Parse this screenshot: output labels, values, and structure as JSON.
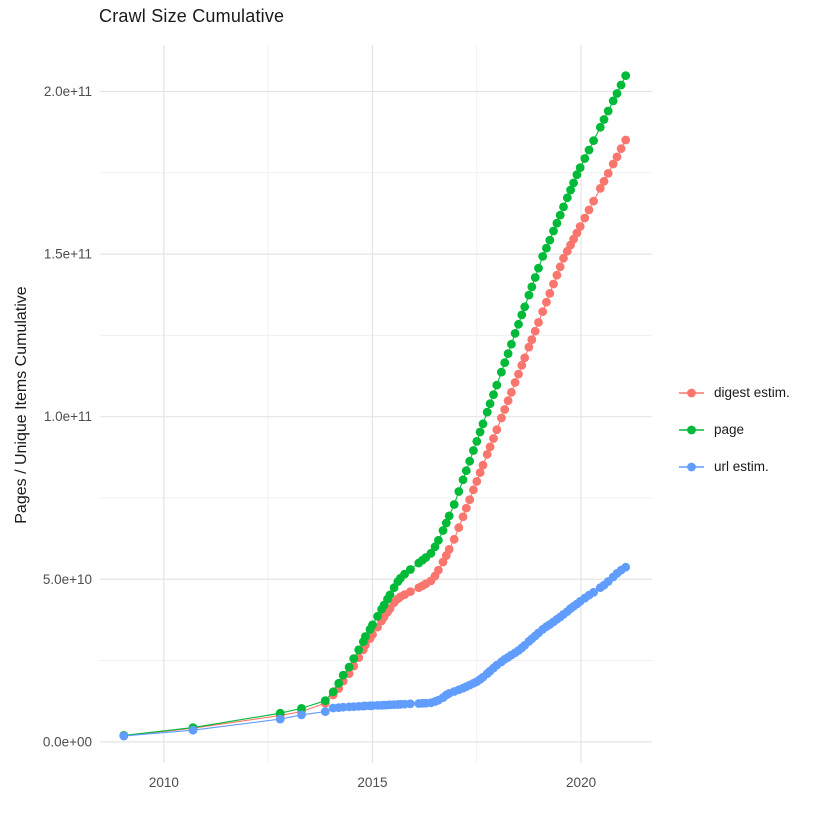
{
  "chart_data": {
    "type": "scatter",
    "title": "Crawl Size Cumulative",
    "xlabel": "",
    "ylabel": "Pages / Unique Items Cumulative",
    "value_units": "billions (1e9) of pages / unique items",
    "grid": true,
    "legend_position": "right",
    "xlim": [
      2008.47,
      2021.7
    ],
    "ylim_billions": [
      -6.5,
      214.3
    ],
    "x_ticks": [
      {
        "value": 2010,
        "label": "2010"
      },
      {
        "value": 2015,
        "label": "2015"
      },
      {
        "value": 2020,
        "label": "2020"
      }
    ],
    "x_minor": [
      2012.5,
      2017.5
    ],
    "y_ticks": [
      {
        "value_billions": 0,
        "label": "0.0e+00"
      },
      {
        "value_billions": 50,
        "label": "5.0e+10"
      },
      {
        "value_billions": 100,
        "label": "1.0e+11"
      },
      {
        "value_billions": 150,
        "label": "1.5e+11"
      },
      {
        "value_billions": 200,
        "label": "2.0e+11"
      }
    ],
    "y_minor_billions": [
      25,
      75,
      125,
      175
    ],
    "point_radius": 4.4,
    "series": [
      {
        "name": "digest estim.",
        "color": "#F8766D",
        "points": [
          [
            2009.04,
            1.85
          ],
          [
            2010.7,
            4.2
          ],
          [
            2012.79,
            8.1
          ],
          [
            2013.3,
            9.3
          ],
          [
            2013.87,
            11.9
          ],
          [
            2014.06,
            14.4
          ],
          [
            2014.19,
            16.4
          ],
          [
            2014.3,
            18.7
          ],
          [
            2014.44,
            21.0
          ],
          [
            2014.55,
            23.3
          ],
          [
            2014.67,
            25.9
          ],
          [
            2014.78,
            28.3
          ],
          [
            2014.83,
            29.8
          ],
          [
            2014.94,
            31.8
          ],
          [
            2015.0,
            33.0
          ],
          [
            2015.12,
            35.3
          ],
          [
            2015.22,
            37.2
          ],
          [
            2015.28,
            38.4
          ],
          [
            2015.36,
            39.9
          ],
          [
            2015.42,
            41.0
          ],
          [
            2015.52,
            42.8
          ],
          [
            2015.61,
            44.0
          ],
          [
            2015.67,
            44.6
          ],
          [
            2015.77,
            45.3
          ],
          [
            2015.91,
            46.2
          ],
          [
            2016.11,
            47.4
          ],
          [
            2016.2,
            48.0
          ],
          [
            2016.28,
            48.6
          ],
          [
            2016.4,
            49.5
          ],
          [
            2016.5,
            51.0
          ],
          [
            2016.58,
            52.8
          ],
          [
            2016.69,
            55.3
          ],
          [
            2016.77,
            57.3
          ],
          [
            2016.84,
            59.2
          ],
          [
            2016.96,
            62.3
          ],
          [
            2017.07,
            65.9
          ],
          [
            2017.17,
            69.2
          ],
          [
            2017.25,
            71.9
          ],
          [
            2017.33,
            74.5
          ],
          [
            2017.42,
            77.5
          ],
          [
            2017.5,
            80.1
          ],
          [
            2017.58,
            82.8
          ],
          [
            2017.65,
            85.1
          ],
          [
            2017.75,
            88.4
          ],
          [
            2017.82,
            90.7
          ],
          [
            2017.9,
            93.3
          ],
          [
            2017.98,
            96.0
          ],
          [
            2018.09,
            99.6
          ],
          [
            2018.17,
            102.2
          ],
          [
            2018.25,
            104.9
          ],
          [
            2018.33,
            107.5
          ],
          [
            2018.42,
            110.5
          ],
          [
            2018.5,
            113.1
          ],
          [
            2018.58,
            115.8
          ],
          [
            2018.65,
            118.1
          ],
          [
            2018.75,
            121.4
          ],
          [
            2018.82,
            123.7
          ],
          [
            2018.9,
            126.3
          ],
          [
            2018.98,
            129.0
          ],
          [
            2019.08,
            132.3
          ],
          [
            2019.17,
            135.2
          ],
          [
            2019.25,
            137.9
          ],
          [
            2019.34,
            140.8
          ],
          [
            2019.42,
            143.5
          ],
          [
            2019.5,
            146.1
          ],
          [
            2019.58,
            148.7
          ],
          [
            2019.67,
            150.9
          ],
          [
            2019.75,
            152.8
          ],
          [
            2019.82,
            154.6
          ],
          [
            2019.9,
            156.5
          ],
          [
            2019.98,
            158.5
          ],
          [
            2020.09,
            161.1
          ],
          [
            2020.19,
            163.6
          ],
          [
            2020.3,
            166.3
          ],
          [
            2020.46,
            170.2
          ],
          [
            2020.55,
            172.4
          ],
          [
            2020.65,
            174.8
          ],
          [
            2020.77,
            177.7
          ],
          [
            2020.86,
            179.9
          ],
          [
            2020.96,
            182.4
          ],
          [
            2021.07,
            185.1
          ]
        ]
      },
      {
        "name": "page",
        "color": "#00BA38",
        "points": [
          [
            2009.04,
            2.0
          ],
          [
            2010.7,
            4.4
          ],
          [
            2012.79,
            8.8
          ],
          [
            2013.3,
            10.3
          ],
          [
            2013.87,
            12.7
          ],
          [
            2014.06,
            15.4
          ],
          [
            2014.19,
            18.0
          ],
          [
            2014.3,
            20.5
          ],
          [
            2014.44,
            23.0
          ],
          [
            2014.55,
            25.6
          ],
          [
            2014.67,
            28.3
          ],
          [
            2014.78,
            30.8
          ],
          [
            2014.83,
            32.4
          ],
          [
            2014.94,
            34.6
          ],
          [
            2015.0,
            36.0
          ],
          [
            2015.12,
            38.6
          ],
          [
            2015.22,
            40.8
          ],
          [
            2015.28,
            42.1
          ],
          [
            2015.36,
            43.9
          ],
          [
            2015.42,
            45.2
          ],
          [
            2015.52,
            47.4
          ],
          [
            2015.61,
            49.3
          ],
          [
            2015.67,
            50.3
          ],
          [
            2015.77,
            51.6
          ],
          [
            2015.91,
            53.0
          ],
          [
            2016.11,
            55.0
          ],
          [
            2016.2,
            55.9
          ],
          [
            2016.28,
            56.7
          ],
          [
            2016.4,
            58.0
          ],
          [
            2016.5,
            60.0
          ],
          [
            2016.58,
            62.0
          ],
          [
            2016.69,
            65.0
          ],
          [
            2016.77,
            67.3
          ],
          [
            2016.84,
            69.5
          ],
          [
            2016.96,
            73.0
          ],
          [
            2017.07,
            77.0
          ],
          [
            2017.17,
            80.6
          ],
          [
            2017.25,
            83.4
          ],
          [
            2017.33,
            86.3
          ],
          [
            2017.42,
            89.6
          ],
          [
            2017.5,
            92.4
          ],
          [
            2017.58,
            95.3
          ],
          [
            2017.65,
            97.8
          ],
          [
            2017.75,
            101.4
          ],
          [
            2017.82,
            104.0
          ],
          [
            2017.9,
            106.8
          ],
          [
            2017.98,
            109.7
          ],
          [
            2018.09,
            113.7
          ],
          [
            2018.17,
            116.6
          ],
          [
            2018.25,
            119.4
          ],
          [
            2018.33,
            122.3
          ],
          [
            2018.42,
            125.6
          ],
          [
            2018.5,
            128.4
          ],
          [
            2018.58,
            131.3
          ],
          [
            2018.65,
            133.8
          ],
          [
            2018.75,
            137.4
          ],
          [
            2018.82,
            139.9
          ],
          [
            2018.9,
            142.8
          ],
          [
            2018.98,
            145.7
          ],
          [
            2019.08,
            149.3
          ],
          [
            2019.17,
            151.8
          ],
          [
            2019.25,
            154.3
          ],
          [
            2019.34,
            157.1
          ],
          [
            2019.42,
            159.5
          ],
          [
            2019.5,
            162.0
          ],
          [
            2019.58,
            164.5
          ],
          [
            2019.67,
            167.3
          ],
          [
            2019.75,
            169.7
          ],
          [
            2019.82,
            171.9
          ],
          [
            2019.9,
            174.4
          ],
          [
            2019.98,
            176.6
          ],
          [
            2020.09,
            179.4
          ],
          [
            2020.19,
            182.0
          ],
          [
            2020.3,
            184.9
          ],
          [
            2020.46,
            189.0
          ],
          [
            2020.55,
            191.4
          ],
          [
            2020.65,
            194.0
          ],
          [
            2020.77,
            197.1
          ],
          [
            2020.86,
            199.4
          ],
          [
            2020.96,
            202.0
          ],
          [
            2021.07,
            204.9
          ]
        ]
      },
      {
        "name": "url estim.",
        "color": "#619CFF",
        "points": [
          [
            2009.04,
            1.8
          ],
          [
            2010.7,
            3.6
          ],
          [
            2012.79,
            7.0
          ],
          [
            2013.3,
            8.3
          ],
          [
            2013.87,
            9.3
          ],
          [
            2014.06,
            10.4
          ],
          [
            2014.19,
            10.55
          ],
          [
            2014.3,
            10.65
          ],
          [
            2014.44,
            10.75
          ],
          [
            2014.55,
            10.85
          ],
          [
            2014.67,
            10.9
          ],
          [
            2014.78,
            11.0
          ],
          [
            2014.83,
            11.05
          ],
          [
            2014.94,
            11.1
          ],
          [
            2015.0,
            11.15
          ],
          [
            2015.12,
            11.2
          ],
          [
            2015.22,
            11.25
          ],
          [
            2015.28,
            11.3
          ],
          [
            2015.36,
            11.35
          ],
          [
            2015.42,
            11.4
          ],
          [
            2015.52,
            11.45
          ],
          [
            2015.61,
            11.5
          ],
          [
            2015.67,
            11.55
          ],
          [
            2015.77,
            11.6
          ],
          [
            2015.91,
            11.7
          ],
          [
            2016.11,
            11.8
          ],
          [
            2016.2,
            11.85
          ],
          [
            2016.28,
            11.9
          ],
          [
            2016.4,
            12.0
          ],
          [
            2016.5,
            12.4
          ],
          [
            2016.58,
            12.8
          ],
          [
            2016.69,
            13.6
          ],
          [
            2016.77,
            14.4
          ],
          [
            2016.84,
            14.9
          ],
          [
            2016.96,
            15.5
          ],
          [
            2017.07,
            16.0
          ],
          [
            2017.17,
            16.5
          ],
          [
            2017.25,
            17.0
          ],
          [
            2017.33,
            17.5
          ],
          [
            2017.42,
            18.0
          ],
          [
            2017.5,
            18.5
          ],
          [
            2017.58,
            19.2
          ],
          [
            2017.65,
            19.9
          ],
          [
            2017.75,
            21.0
          ],
          [
            2017.82,
            21.8
          ],
          [
            2017.9,
            22.7
          ],
          [
            2017.98,
            23.6
          ],
          [
            2018.09,
            24.6
          ],
          [
            2018.17,
            25.4
          ],
          [
            2018.25,
            26.0
          ],
          [
            2018.33,
            26.7
          ],
          [
            2018.42,
            27.4
          ],
          [
            2018.5,
            28.1
          ],
          [
            2018.58,
            28.9
          ],
          [
            2018.65,
            29.7
          ],
          [
            2018.75,
            30.9
          ],
          [
            2018.82,
            31.7
          ],
          [
            2018.9,
            32.6
          ],
          [
            2018.98,
            33.5
          ],
          [
            2019.08,
            34.6
          ],
          [
            2019.17,
            35.4
          ],
          [
            2019.25,
            36.1
          ],
          [
            2019.34,
            36.9
          ],
          [
            2019.42,
            37.7
          ],
          [
            2019.5,
            38.4
          ],
          [
            2019.58,
            39.2
          ],
          [
            2019.67,
            40.1
          ],
          [
            2019.75,
            41.0
          ],
          [
            2019.82,
            41.7
          ],
          [
            2019.9,
            42.4
          ],
          [
            2019.98,
            43.2
          ],
          [
            2020.09,
            44.2
          ],
          [
            2020.19,
            45.1
          ],
          [
            2020.3,
            46.0
          ],
          [
            2020.46,
            47.4
          ],
          [
            2020.55,
            48.2
          ],
          [
            2020.65,
            49.3
          ],
          [
            2020.77,
            50.7
          ],
          [
            2020.86,
            51.8
          ],
          [
            2020.96,
            52.8
          ],
          [
            2021.07,
            53.7
          ]
        ]
      }
    ],
    "colors": {
      "grid_major": "#e4e4e4",
      "grid_minor": "#efefef",
      "tick_label": "#4d4d4d",
      "text": "#1a1a1a",
      "background": "#ffffff"
    }
  }
}
